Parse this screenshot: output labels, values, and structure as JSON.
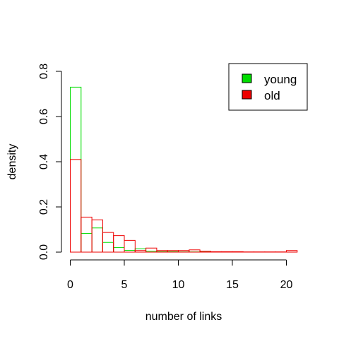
{
  "chart_data": {
    "type": "bar",
    "subtype": "overlaid-histogram",
    "title": "",
    "xlabel": "number of links",
    "ylabel": "density",
    "xlim": [
      0,
      21
    ],
    "ylim": [
      0,
      0.8
    ],
    "x_ticks": [
      0,
      5,
      10,
      15,
      20
    ],
    "y_ticks": [
      0.0,
      0.2,
      0.4,
      0.6,
      0.8
    ],
    "x_tick_labels": [
      "0",
      "5",
      "10",
      "15",
      "20"
    ],
    "y_tick_labels": [
      "0.0",
      "0.2",
      "0.4",
      "0.6",
      "0.8"
    ],
    "bin_edges": [
      0,
      1,
      2,
      3,
      4,
      5,
      6,
      7,
      8,
      9,
      10,
      11,
      12,
      13,
      14,
      15,
      16,
      17,
      18,
      19,
      20,
      21
    ],
    "grid": false,
    "legend_position": "top-right",
    "series": [
      {
        "name": "young",
        "color": "#00dd00",
        "values": [
          0.73,
          0.083,
          0.107,
          0.043,
          0.02,
          0.008,
          0.015,
          0.004,
          0.002,
          0.002,
          0.001,
          0.001,
          0.001,
          0,
          0,
          0,
          0,
          0,
          0,
          0,
          0
        ]
      },
      {
        "name": "old",
        "color": "#ee0000",
        "values": [
          0.41,
          0.155,
          0.143,
          0.087,
          0.073,
          0.052,
          0.007,
          0.018,
          0.007,
          0.007,
          0.007,
          0.01,
          0.004,
          0.002,
          0.002,
          0.002,
          0.001,
          0.001,
          0.001,
          0.001,
          0.007
        ]
      }
    ]
  }
}
